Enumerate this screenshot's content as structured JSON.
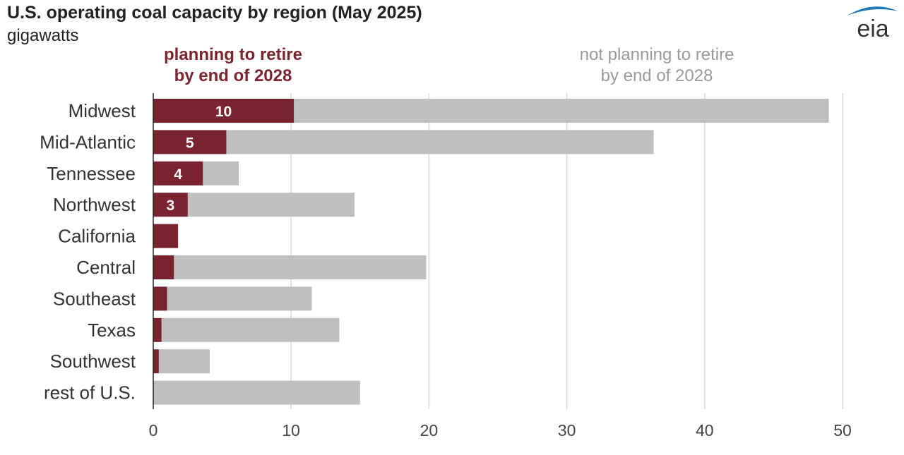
{
  "title": "U.S. operating coal capacity by region (May 2025)",
  "subtitle": "gigawatts",
  "logo_text": "eia",
  "legend": {
    "retire_line1": "planning to retire",
    "retire_line2": "by end of 2028",
    "keep_line1": "not planning to retire",
    "keep_line2": "by end of 2028"
  },
  "colors": {
    "retire": "#7a2430",
    "keep": "#bfbfbf",
    "grid": "#d9d9d9",
    "logo_blue": "#1f7ab8"
  },
  "chart_data": {
    "type": "bar",
    "orientation": "horizontal",
    "stacked": true,
    "categories": [
      "Midwest",
      "Mid-Atlantic",
      "Tennessee",
      "Northwest",
      "California",
      "Central",
      "Southeast",
      "Texas",
      "Southwest",
      "rest of U.S."
    ],
    "series": [
      {
        "name": "planning to retire by end of 2028",
        "values": [
          10.2,
          5.3,
          3.6,
          2.5,
          1.8,
          1.5,
          1.0,
          0.6,
          0.4,
          0.0
        ]
      },
      {
        "name": "not planning to retire by end of 2028",
        "values": [
          38.8,
          31.0,
          2.6,
          12.1,
          0.0,
          18.3,
          10.5,
          12.9,
          3.7,
          15.0
        ]
      }
    ],
    "data_labels": [
      "10",
      "5",
      "4",
      "3",
      "",
      "",
      "",
      "",
      "",
      ""
    ],
    "xlim": [
      0,
      50
    ],
    "xticks": [
      "0",
      "10",
      "20",
      "30",
      "40",
      "50"
    ],
    "grid": true,
    "legend_position": "top"
  }
}
